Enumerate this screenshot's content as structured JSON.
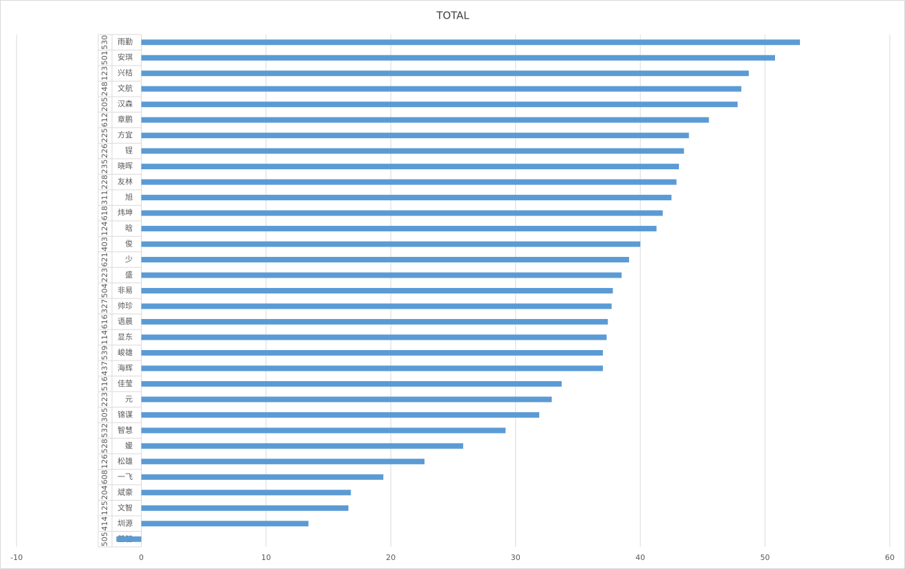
{
  "chart_data": {
    "type": "bar",
    "orientation": "horizontal",
    "title": "TOTAL",
    "categories": [
      "雨勤",
      "安琪",
      "兴桔",
      "文航",
      "汉森",
      "章鹏",
      "方宜",
      "锃",
      "晓晖",
      "友林",
      "旭",
      "炜坤",
      "晗",
      "俊",
      "少",
      "盛",
      "非易",
      "帅珍",
      "语晨",
      "显东",
      "峻雄",
      "海辉",
      "佳莹",
      "元",
      "锦谋",
      "智慧",
      "媛",
      "松雄",
      "一飞",
      "斌豪",
      "文智",
      "圳源",
      "基智"
    ],
    "groups": [
      "530",
      "501",
      "123",
      "248",
      "205",
      "612",
      "225",
      "226",
      "235",
      "228",
      "311",
      "618",
      "124",
      "403",
      "621",
      "223",
      "504",
      "327",
      "616",
      "114",
      "539",
      "437",
      "516",
      "223",
      "305",
      "532",
      "528",
      "126",
      "608",
      "204",
      "125",
      "414",
      "505"
    ],
    "values": [
      52.8,
      50.8,
      48.7,
      48.1,
      47.8,
      45.5,
      43.9,
      43.5,
      43.1,
      42.9,
      42.5,
      41.8,
      41.3,
      40.0,
      39.1,
      38.5,
      37.8,
      37.7,
      37.4,
      37.3,
      37.0,
      37.0,
      33.7,
      32.9,
      31.9,
      29.2,
      25.8,
      22.7,
      19.4,
      16.8,
      16.6,
      13.4,
      -2.0
    ],
    "color": "#5b9bd5",
    "xlim": [
      -10,
      60
    ],
    "xticks": [
      -10,
      0,
      10,
      20,
      30,
      40,
      50,
      60
    ],
    "grid": true
  }
}
